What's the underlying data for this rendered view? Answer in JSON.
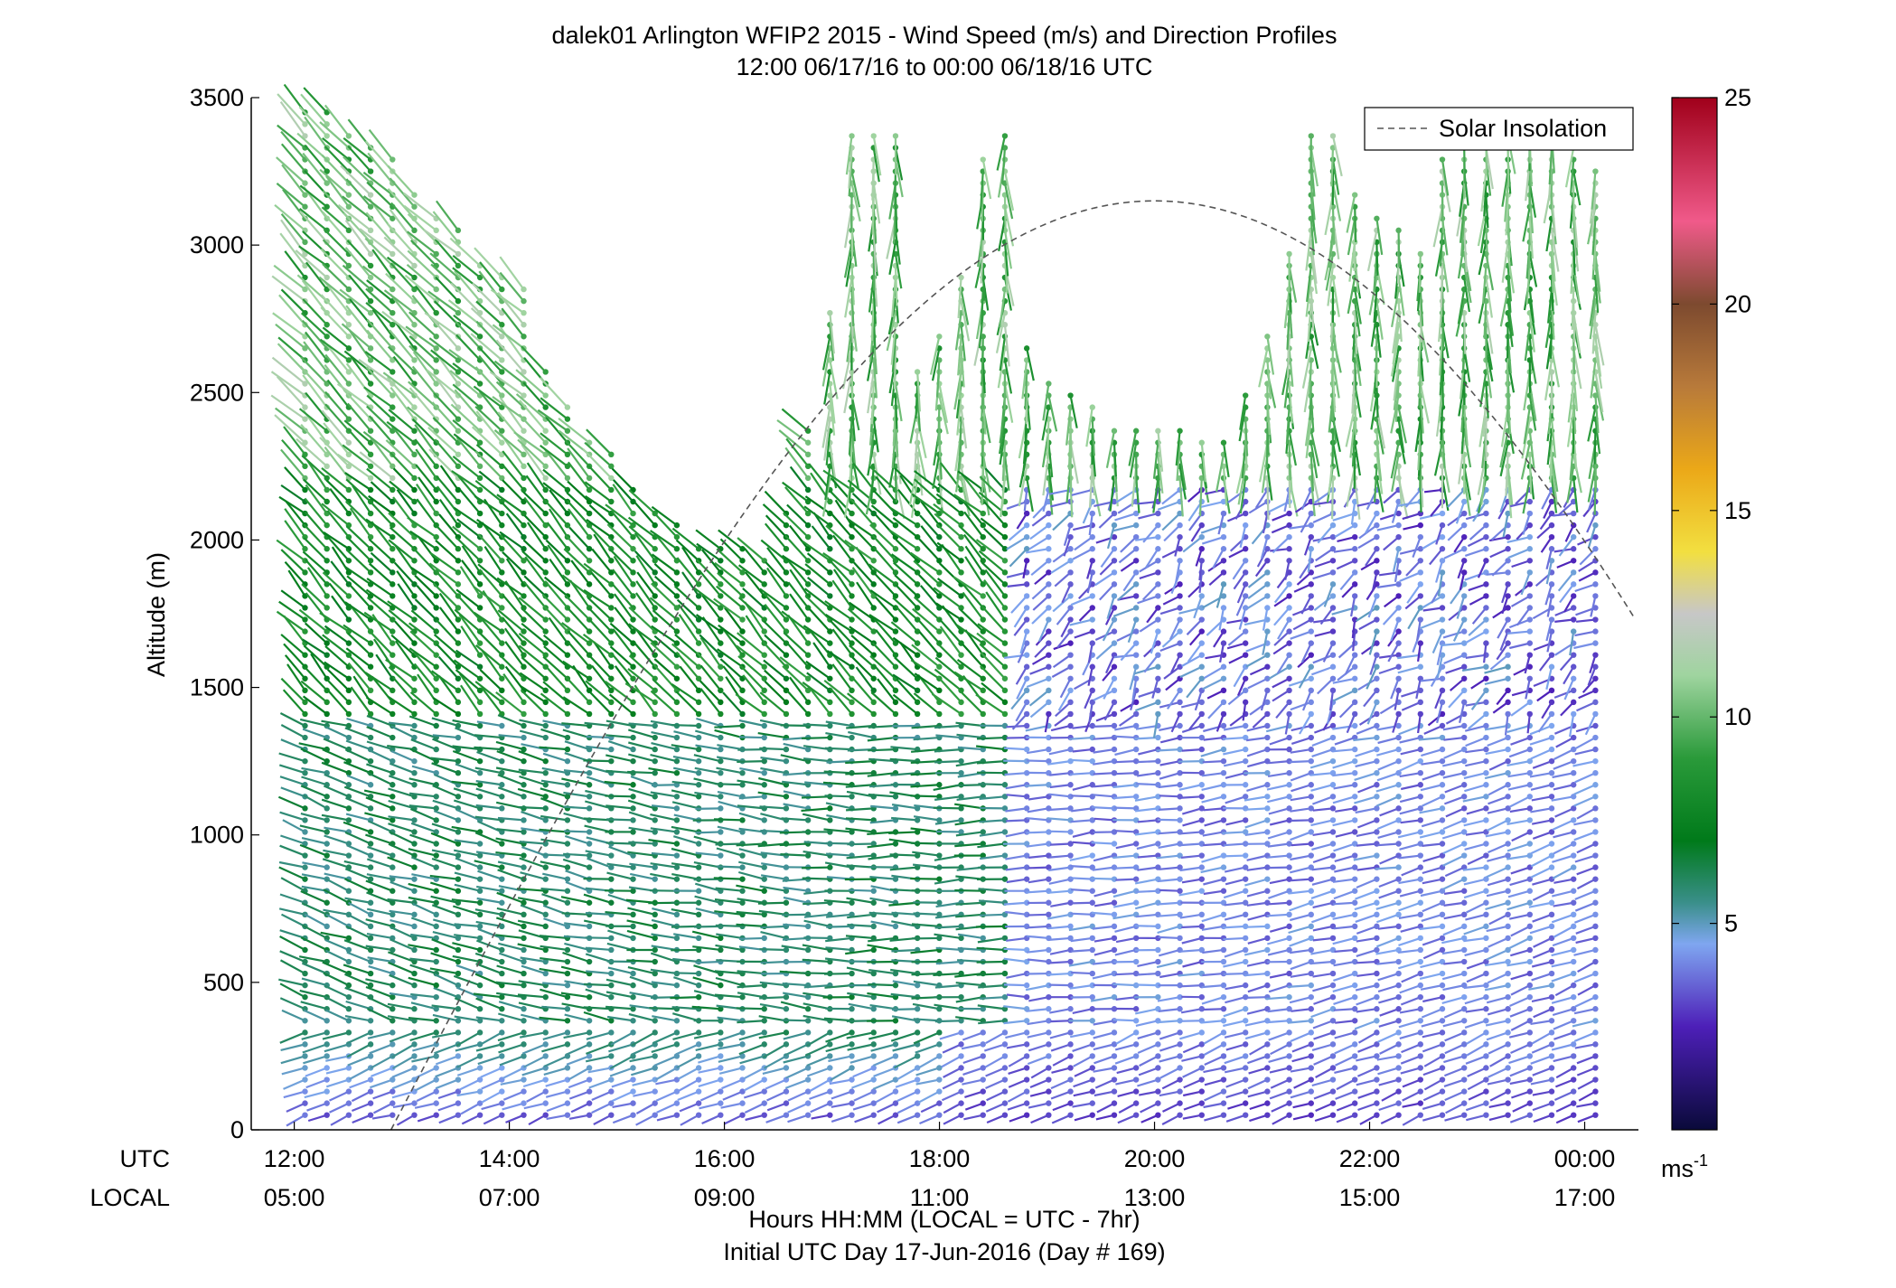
{
  "chart_data": {
    "type": "wind-barb-profile",
    "title_line1": "dalek01 Arlington WFIP2 2015 - Wind Speed (m/s) and Direction Profiles",
    "title_line2": "12:00 06/17/16 to 00:00 06/18/16  UTC",
    "ylabel": "Altitude (m)",
    "ylim": [
      0,
      3500
    ],
    "y_ticks": [
      "0",
      "500",
      "1000",
      "1500",
      "2000",
      "2500",
      "3000",
      "3500"
    ],
    "y_tick_values": [
      0,
      500,
      1000,
      1500,
      2000,
      2500,
      3000,
      3500
    ],
    "x_range_hours_utc": [
      11.6,
      24.5
    ],
    "x_row_labels": [
      "UTC",
      "LOCAL"
    ],
    "x_tick_hours": [
      12,
      14,
      16,
      18,
      20,
      22,
      24
    ],
    "x_ticks_utc": [
      "12:00",
      "14:00",
      "16:00",
      "18:00",
      "20:00",
      "22:00",
      "00:00"
    ],
    "x_ticks_local": [
      "05:00",
      "07:00",
      "09:00",
      "11:00",
      "13:00",
      "15:00",
      "17:00"
    ],
    "xlabel_line1": "Hours HH:MM  (LOCAL = UTC - 7hr)",
    "xlabel_line2": "Initial UTC Day 17-Jun-2016 (Day # 169)",
    "legend": {
      "entries": [
        "Solar Insolation"
      ],
      "placement": "top-right"
    },
    "colorbar": {
      "range": [
        0,
        25
      ],
      "ticks": [
        "5",
        "10",
        "15",
        "20",
        "25"
      ],
      "tick_values": [
        5,
        10,
        15,
        20,
        25
      ],
      "unit": "ms",
      "unit_exp": "-1",
      "colors": {
        "0": "#0a0a3a",
        "2.5": "#4d1fb8",
        "4.5": "#7fa6f0",
        "5.5": "#3a8f8a",
        "7": "#007a1a",
        "9": "#2a9a3a",
        "11": "#9fd49f",
        "12.5": "#c7c7c7",
        "14": "#f2df40",
        "16": "#eba818",
        "18": "#b87a3a",
        "20": "#7d4a2f",
        "22": "#f05a8a",
        "25": "#a0001a"
      }
    },
    "profile_start_hour": 12.1,
    "profile_end_hour": 24.1,
    "profile_count": 60,
    "profile_tops_m": [
      3450,
      3450,
      3400,
      3350,
      3300,
      3200,
      3100,
      3050,
      2950,
      2900,
      2850,
      2600,
      2450,
      2350,
      2300,
      2200,
      2100,
      2050,
      2000,
      2000,
      2000,
      1950,
      2100,
      2400,
      2800,
      3400,
      3400,
      3400,
      2600,
      2700,
      2900,
      3300,
      3400,
      2650,
      2550,
      2500,
      2450,
      2400,
      2400,
      2400,
      2400,
      2350,
      2350,
      2500,
      2700,
      3000,
      3400,
      3400,
      3200,
      3100,
      3050,
      3000,
      3300,
      3350,
      3400,
      3400,
      3450,
      3400,
      3350,
      3250
    ],
    "barb_min_height_m": 50,
    "level_spacing_m": 40,
    "low_level_m": 350,
    "wind_direction_deg": {
      "low": 250,
      "mid_morning": 290,
      "upper_morning": 315,
      "upper_afternoon": 180,
      "mid_afternoon": 225
    },
    "wind_speed_ms": {
      "near_surface": 3,
      "low_morning": 6,
      "low_afternoon": 4,
      "mid": 8,
      "upper": 10,
      "afternoon_mid": 2.5
    },
    "solar_insolation": {
      "peak_hour_utc": 20.0,
      "peak_value_m": 3150,
      "rise_hour_utc": 12.9,
      "half_width_h": 7.1
    }
  }
}
